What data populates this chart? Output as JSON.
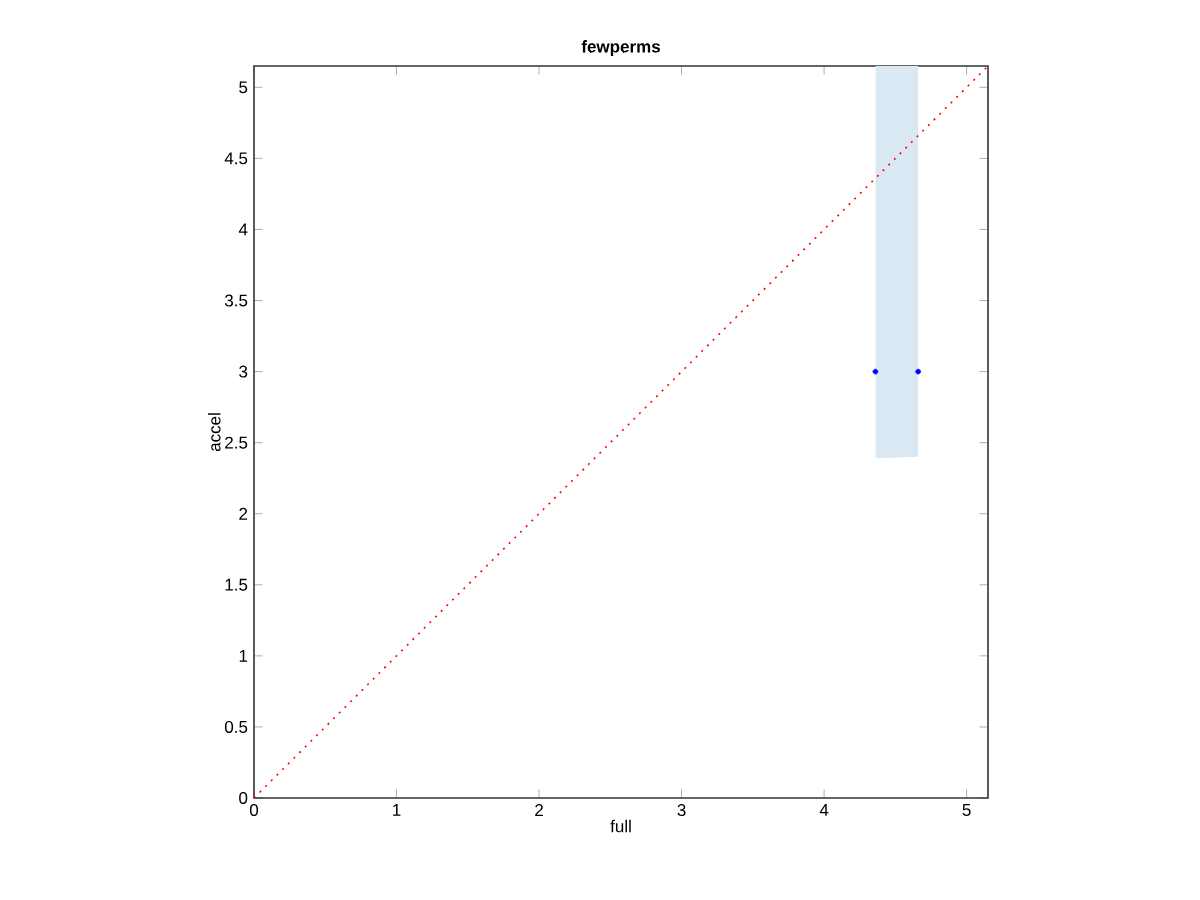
{
  "chart_data": {
    "type": "scatter",
    "title": "fewperms",
    "xlabel": "full",
    "ylabel": "accel",
    "xlim": [
      0,
      5.15
    ],
    "ylim": [
      0,
      5.15
    ],
    "xticks": [
      0,
      1,
      2,
      3,
      4,
      5
    ],
    "yticks": [
      0,
      0.5,
      1,
      1.5,
      2,
      2.5,
      3,
      3.5,
      4,
      4.5,
      5
    ],
    "grid": false,
    "series": [
      {
        "color": "#0000ff",
        "marker": "circle",
        "x": [
          4.36,
          4.66
        ],
        "values": [
          3,
          3
        ],
        "lower": [
          2.39,
          2.4
        ],
        "upper": [
          5.15,
          5.15
        ]
      },
      {
        "type": "line",
        "color": "#ff0000",
        "line_style": "dotted",
        "marker": "none",
        "x": [
          0,
          5.15
        ],
        "values": [
          0,
          5.15
        ]
      }
    ]
  }
}
